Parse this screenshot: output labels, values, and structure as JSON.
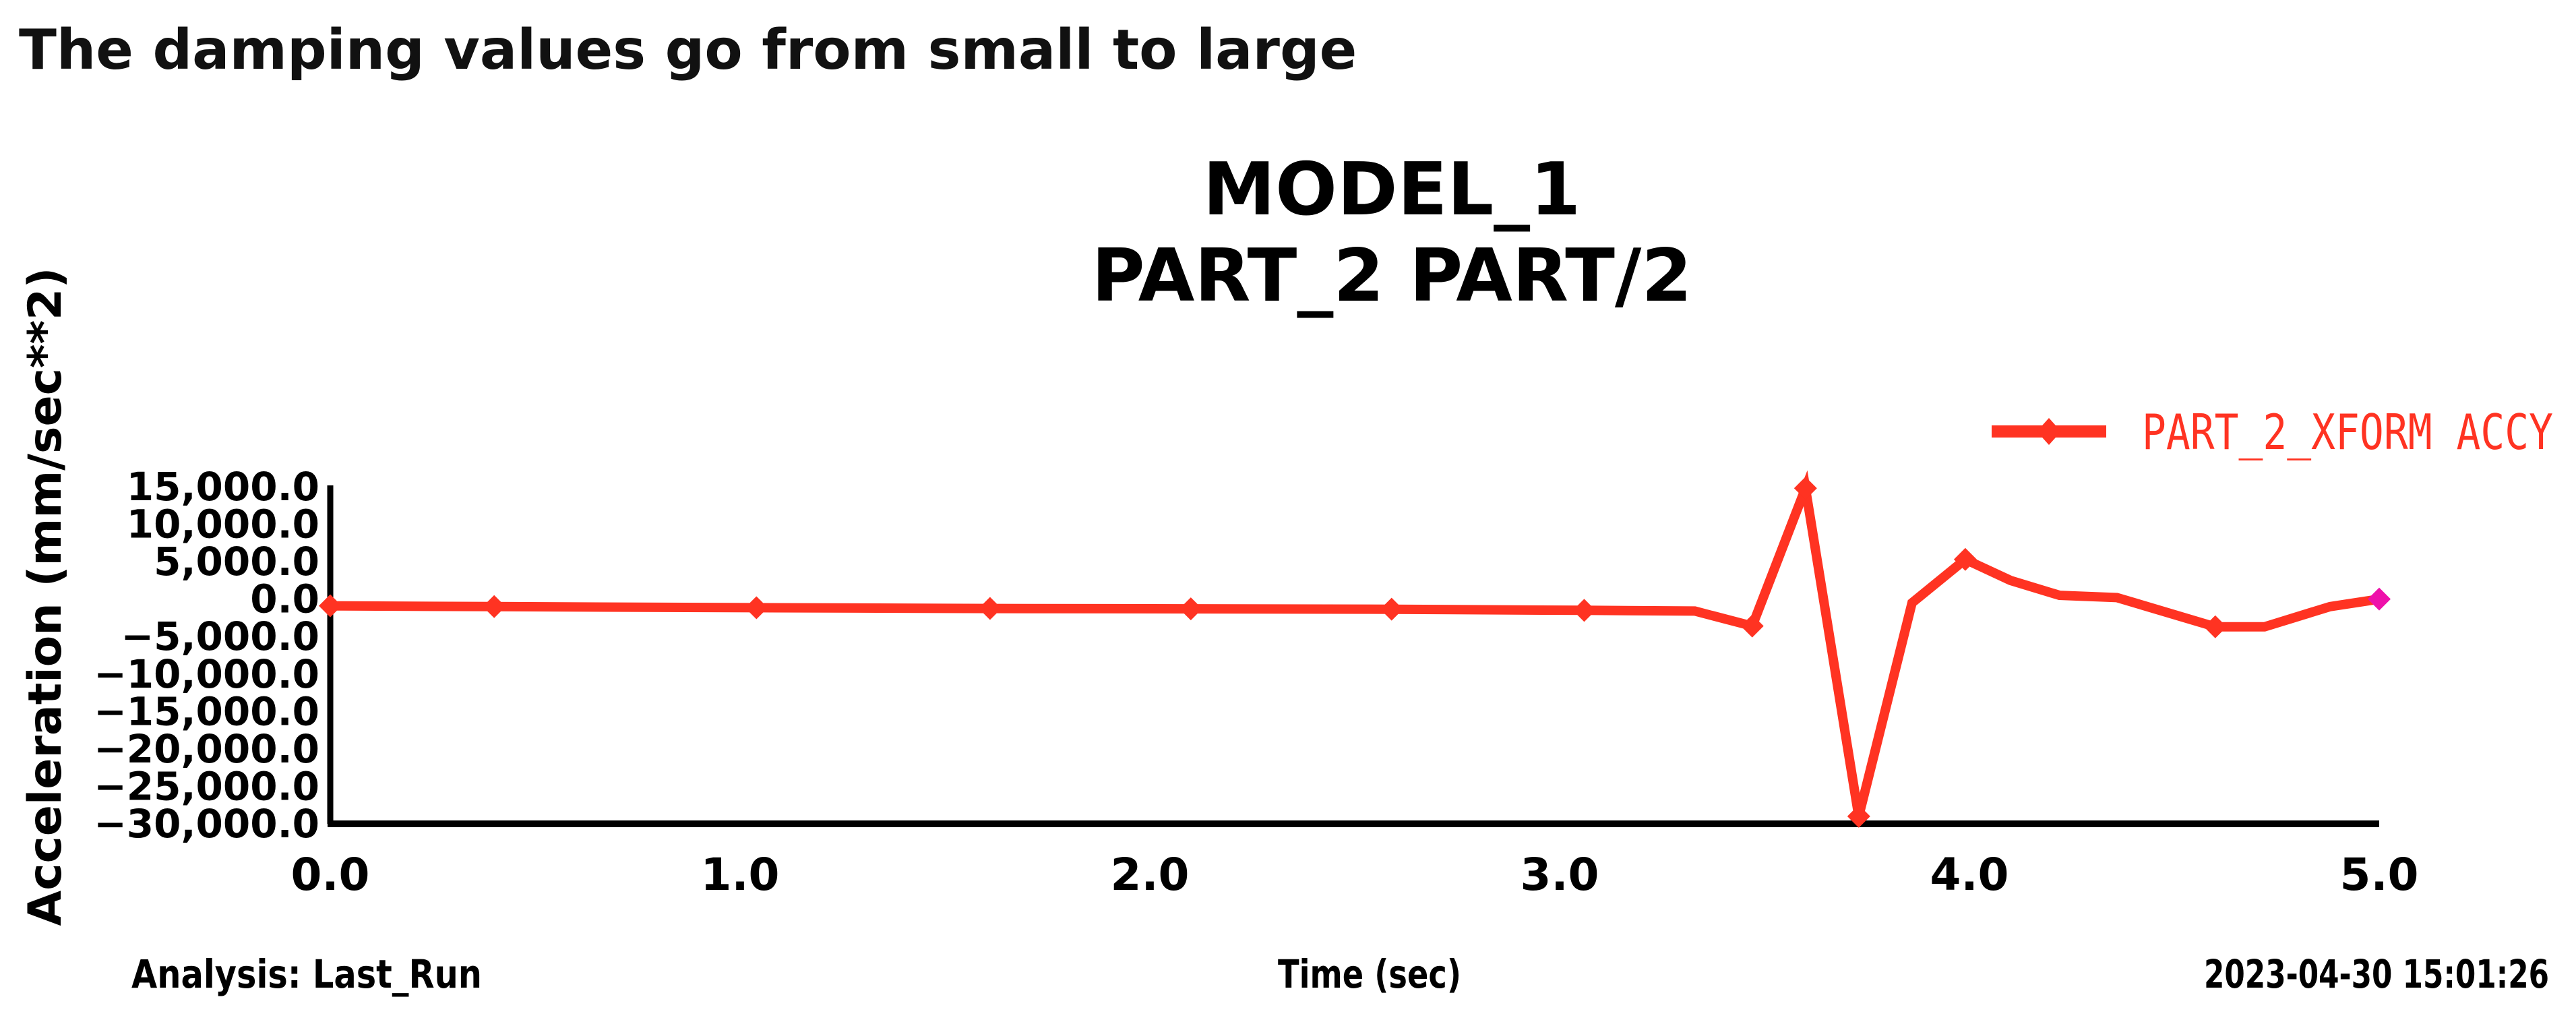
{
  "page": {
    "heading": "The damping values go from small to large"
  },
  "footer": {
    "analysis": "Analysis: Last_Run",
    "x_axis_label": "Time (sec)",
    "timestamp": "2023-04-30 15:01:26"
  },
  "colors": {
    "series_line": "#ff3322",
    "last_marker": "#ee11aa",
    "axis": "#000000"
  },
  "chart_data": {
    "type": "line",
    "title": [
      "MODEL_1",
      "PART_2 PART/2"
    ],
    "xlabel": "Time (sec)",
    "ylabel": "Acceleration (mm/sec**2)",
    "xlim": [
      0.0,
      5.0
    ],
    "ylim": [
      -30000.0,
      15000.0
    ],
    "x_ticks": [
      "0.0",
      "1.0",
      "2.0",
      "3.0",
      "4.0",
      "5.0"
    ],
    "x_tick_values": [
      0,
      1,
      2,
      3,
      4,
      5
    ],
    "y_ticks": [
      "15,000.0",
      "10,000.0",
      "5,000.0",
      "0.0",
      "-5,000.0",
      "-10,000.0",
      "-15,000.0",
      "-20,000.0",
      "-25,000.0",
      "-30,000.0"
    ],
    "y_tick_values": [
      15000,
      10000,
      5000,
      0,
      -5000,
      -10000,
      -15000,
      -20000,
      -25000,
      -30000
    ],
    "grid": false,
    "legend_position": "top-right",
    "series": [
      {
        "name": "PART_2_XFORM ACCY",
        "x": [
          0.0,
          0.4,
          1.04,
          1.61,
          2.1,
          2.59,
          3.06,
          3.33,
          3.47,
          3.6,
          3.73,
          3.86,
          3.99,
          4.1,
          4.22,
          4.36,
          4.6,
          4.72,
          4.88,
          5.0
        ],
        "y": [
          -900,
          -1000,
          -1150,
          -1250,
          -1300,
          -1350,
          -1500,
          -1600,
          -3600,
          14800,
          -29000,
          -500,
          5300,
          2500,
          500,
          200,
          -3700,
          -3700,
          -1000,
          0
        ],
        "marker_indices": [
          0,
          1,
          2,
          3,
          4,
          5,
          6,
          8,
          9,
          10,
          12,
          16,
          19
        ]
      }
    ]
  }
}
